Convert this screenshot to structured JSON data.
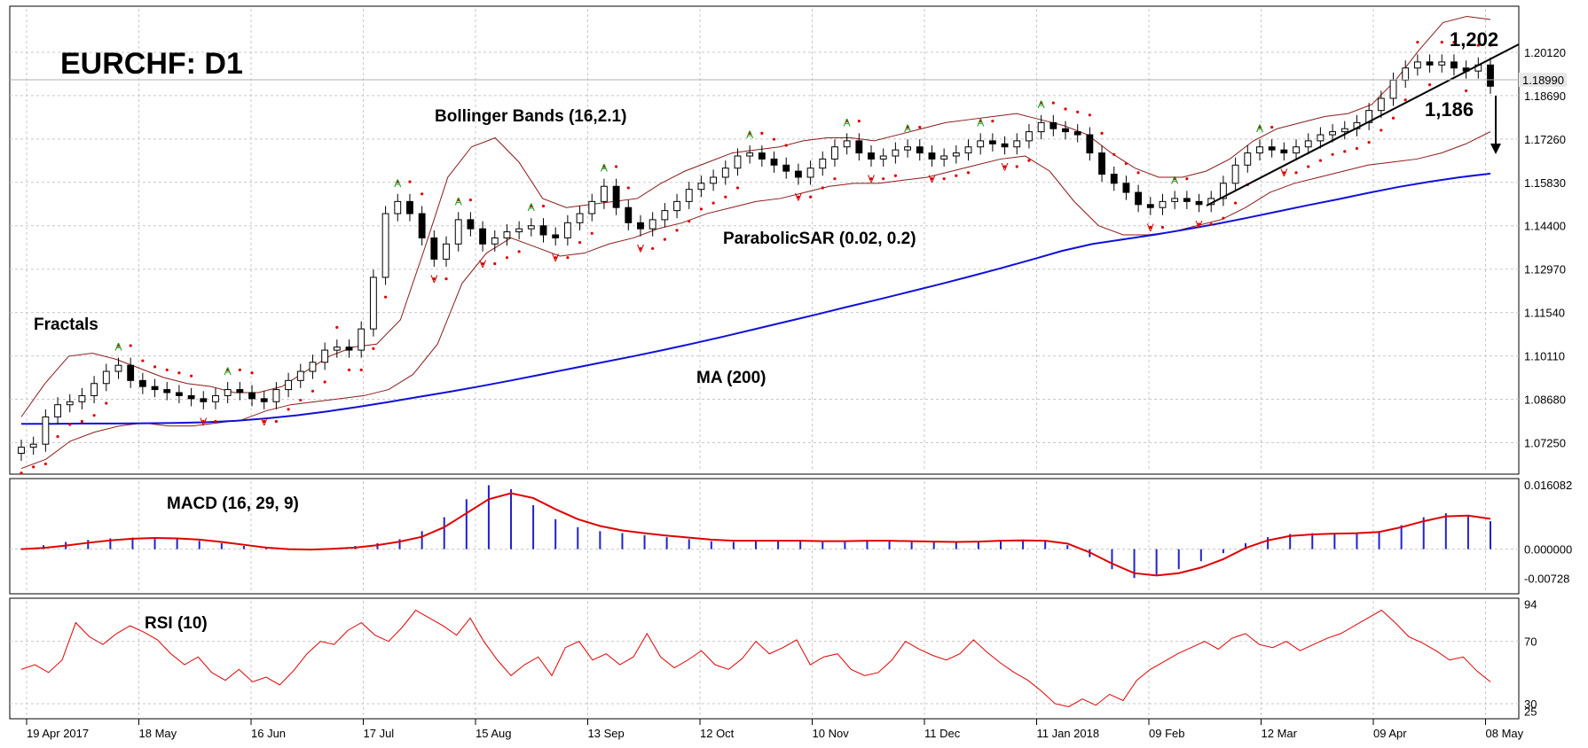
{
  "chart_data": {
    "type": "line",
    "title": "EURCHF: D1",
    "annotations": {
      "bollinger": "Bollinger Bands (16,2.1)",
      "fractals": "Fractals",
      "parabolic_sar": "ParabolicSAR (0.02, 0.2)",
      "ma": "MA (200)",
      "macd": "MACD (16, 29, 9)",
      "rsi": "RSI (10)",
      "level_high": "1,202",
      "level_low": "1,186"
    },
    "x_labels": [
      "19 Apr 2017",
      "18 May",
      "16 Jun",
      "17 Jul",
      "15 Aug",
      "13 Sep",
      "12 Oct",
      "10 Nov",
      "11 Dec",
      "11 Jan 2018",
      "09 Feb",
      "12 Mar",
      "09 Apr",
      "08 May"
    ],
    "price_axis": {
      "ticks": [
        "1.20120",
        "1.18690",
        "1.17260",
        "1.15830",
        "1.14400",
        "1.12970",
        "1.11540",
        "1.10110",
        "1.08680",
        "1.07250"
      ],
      "current_price": "1.18990",
      "range": [
        1.063,
        1.2155
      ]
    },
    "macd_axis": {
      "ticks": [
        "0.016082",
        "0.000000",
        "-0.00728"
      ],
      "range": [
        -0.0105,
        0.017
      ]
    },
    "rsi_axis": {
      "ticks": [
        "94",
        "70",
        "30",
        "25"
      ],
      "range": [
        22,
        96
      ]
    },
    "series": [
      {
        "name": "EURCHF",
        "style": "candlestick-close",
        "values": [
          1.071,
          1.072,
          1.081,
          1.085,
          1.086,
          1.088,
          1.092,
          1.096,
          1.098,
          1.093,
          1.091,
          1.09,
          1.089,
          1.088,
          1.087,
          1.086,
          1.088,
          1.09,
          1.089,
          1.087,
          1.086,
          1.09,
          1.093,
          1.096,
          1.099,
          1.103,
          1.104,
          1.103,
          1.11,
          1.127,
          1.148,
          1.152,
          1.148,
          1.14,
          1.133,
          1.138,
          1.146,
          1.143,
          1.138,
          1.14,
          1.142,
          1.143,
          1.144,
          1.141,
          1.14,
          1.145,
          1.148,
          1.152,
          1.157,
          1.15,
          1.145,
          1.143,
          1.146,
          1.149,
          1.152,
          1.156,
          1.158,
          1.16,
          1.163,
          1.167,
          1.168,
          1.166,
          1.164,
          1.162,
          1.16,
          1.163,
          1.166,
          1.17,
          1.172,
          1.168,
          1.166,
          1.167,
          1.169,
          1.17,
          1.168,
          1.166,
          1.167,
          1.168,
          1.17,
          1.172,
          1.171,
          1.17,
          1.172,
          1.175,
          1.178,
          1.176,
          1.175,
          1.174,
          1.168,
          1.161,
          1.158,
          1.155,
          1.151,
          1.15,
          1.152,
          1.153,
          1.152,
          1.151,
          1.153,
          1.158,
          1.164,
          1.168,
          1.17,
          1.169,
          1.168,
          1.17,
          1.172,
          1.174,
          1.175,
          1.176,
          1.178,
          1.182,
          1.186,
          1.192,
          1.196,
          1.198,
          1.197,
          1.198,
          1.196,
          1.195,
          1.197,
          1.19
        ]
      },
      {
        "name": "MA (200)",
        "color": "#1010d8",
        "values": [
          1.0787,
          1.0787,
          1.0788,
          1.0788,
          1.0789,
          1.079,
          1.0792,
          1.0797,
          1.0805,
          1.0815,
          1.0828,
          1.0843,
          1.0859,
          1.0876,
          1.0893,
          1.0911,
          1.093,
          1.095,
          1.097,
          1.099,
          1.101,
          1.1031,
          1.1053,
          1.1076,
          1.11,
          1.1124,
          1.1148,
          1.1173,
          1.1197,
          1.1222,
          1.1247,
          1.1273,
          1.13,
          1.1328,
          1.1357,
          1.138,
          1.1395,
          1.141,
          1.1427,
          1.1445,
          1.1465,
          1.1486,
          1.1507,
          1.1527,
          1.1548,
          1.1568,
          1.1585,
          1.16,
          1.1612
        ]
      },
      {
        "name": "BB Upper",
        "color": "#8b1a1a",
        "values": [
          1.081,
          1.092,
          1.101,
          1.102,
          1.1,
          1.097,
          1.094,
          1.092,
          1.091,
          1.089,
          1.089,
          1.091,
          1.096,
          1.101,
          1.104,
          1.105,
          1.113,
          1.136,
          1.16,
          1.17,
          1.173,
          1.165,
          1.153,
          1.15,
          1.151,
          1.152,
          1.153,
          1.158,
          1.162,
          1.165,
          1.168,
          1.169,
          1.17,
          1.172,
          1.173,
          1.173,
          1.172,
          1.174,
          1.176,
          1.178,
          1.179,
          1.18,
          1.181,
          1.179,
          1.177,
          1.174,
          1.168,
          1.163,
          1.16,
          1.16,
          1.162,
          1.166,
          1.172,
          1.176,
          1.178,
          1.18,
          1.181,
          1.184,
          1.192,
          1.202,
          1.211,
          1.213,
          1.212
        ]
      },
      {
        "name": "BB Lower",
        "color": "#8b1a1a",
        "values": [
          1.064,
          1.067,
          1.073,
          1.076,
          1.078,
          1.079,
          1.078,
          1.078,
          1.079,
          1.08,
          1.083,
          1.085,
          1.086,
          1.087,
          1.088,
          1.09,
          1.095,
          1.105,
          1.125,
          1.135,
          1.14,
          1.137,
          1.134,
          1.135,
          1.138,
          1.14,
          1.143,
          1.145,
          1.148,
          1.15,
          1.152,
          1.153,
          1.155,
          1.157,
          1.158,
          1.158,
          1.159,
          1.16,
          1.162,
          1.164,
          1.166,
          1.167,
          1.162,
          1.152,
          1.144,
          1.141,
          1.141,
          1.142,
          1.144,
          1.146,
          1.15,
          1.155,
          1.158,
          1.16,
          1.162,
          1.164,
          1.165,
          1.166,
          1.168,
          1.171,
          1.175
        ]
      }
    ],
    "macd": {
      "histogram": [
        0.0002,
        0.001,
        0.0018,
        0.0023,
        0.0027,
        0.0029,
        0.0028,
        0.0025,
        0.0021,
        0.0015,
        0.0008,
        0.0002,
        -0.0001,
        0.0,
        0.0003,
        0.0008,
        0.0015,
        0.0025,
        0.0045,
        0.008,
        0.0125,
        0.016,
        0.015,
        0.011,
        0.0075,
        0.0055,
        0.0045,
        0.004,
        0.0035,
        0.003,
        0.0025,
        0.002,
        0.0018,
        0.002,
        0.0022,
        0.002,
        0.0018,
        0.002,
        0.0022,
        0.002,
        0.0018,
        0.0017,
        0.0018,
        0.002,
        0.0022,
        0.0024,
        0.002,
        0.001,
        -0.002,
        -0.005,
        -0.0072,
        -0.0065,
        -0.005,
        -0.003,
        -0.001,
        0.0015,
        0.003,
        0.0038,
        0.004,
        0.004,
        0.004,
        0.0045,
        0.006,
        0.008,
        0.009,
        0.0085,
        0.007
      ],
      "signal": [
        0.0,
        0.0003,
        0.0009,
        0.0016,
        0.0022,
        0.0026,
        0.0028,
        0.0027,
        0.0024,
        0.0018,
        0.0011,
        0.0004,
        0.0,
        -0.0001,
        0.0001,
        0.0004,
        0.001,
        0.0019,
        0.0031,
        0.0055,
        0.009,
        0.0125,
        0.014,
        0.0128,
        0.01,
        0.0075,
        0.0058,
        0.0047,
        0.004,
        0.0034,
        0.0029,
        0.0024,
        0.0021,
        0.0021,
        0.0021,
        0.0021,
        0.002,
        0.002,
        0.0021,
        0.0021,
        0.002,
        0.0019,
        0.0018,
        0.0019,
        0.0021,
        0.0022,
        0.0021,
        0.0014,
        -0.0008,
        -0.0036,
        -0.006,
        -0.0066,
        -0.006,
        -0.0046,
        -0.0025,
        0.0003,
        0.0022,
        0.0033,
        0.0037,
        0.0039,
        0.004,
        0.0043,
        0.0055,
        0.007,
        0.0082,
        0.0084,
        0.0076
      ]
    },
    "rsi": {
      "values": [
        52,
        55,
        50,
        58,
        82,
        73,
        68,
        75,
        80,
        76,
        71,
        62,
        55,
        60,
        50,
        45,
        52,
        44,
        47,
        42,
        51,
        62,
        70,
        68,
        77,
        82,
        74,
        70,
        79,
        90,
        85,
        80,
        74,
        85,
        70,
        58,
        48,
        55,
        60,
        48,
        66,
        70,
        58,
        62,
        55,
        60,
        75,
        60,
        53,
        58,
        64,
        55,
        52,
        59,
        70,
        62,
        66,
        71,
        55,
        60,
        62,
        52,
        48,
        50,
        58,
        70,
        65,
        61,
        58,
        62,
        71,
        63,
        56,
        50,
        45,
        38,
        30,
        28,
        33,
        29,
        36,
        32,
        45,
        52,
        57,
        62,
        66,
        70,
        65,
        72,
        75,
        68,
        66,
        70,
        64,
        68,
        72,
        75,
        80,
        85,
        90,
        82,
        73,
        69,
        64,
        58,
        60,
        51,
        44
      ]
    }
  }
}
